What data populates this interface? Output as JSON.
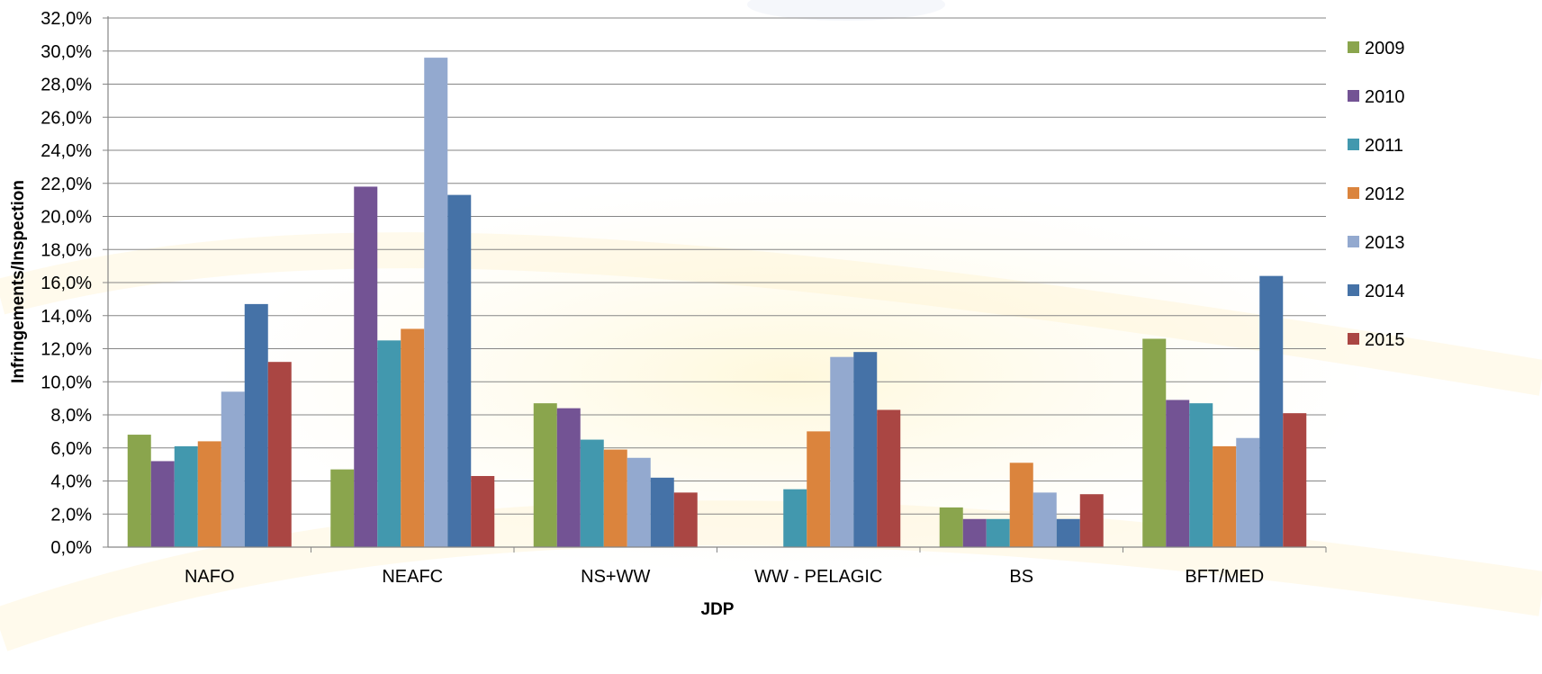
{
  "chart_data": {
    "type": "bar",
    "categories": [
      "NAFO",
      "NEAFC",
      "NS+WW",
      "WW - PELAGIC",
      "BS",
      "BFT/MED"
    ],
    "series": [
      {
        "name": "2009",
        "color": "#8aa54d",
        "values": [
          6.8,
          4.7,
          8.7,
          null,
          2.4,
          12.6
        ]
      },
      {
        "name": "2010",
        "color": "#735394",
        "values": [
          5.2,
          21.8,
          8.4,
          null,
          1.7,
          8.9
        ]
      },
      {
        "name": "2011",
        "color": "#4298ae",
        "values": [
          6.1,
          12.5,
          6.5,
          3.5,
          1.7,
          8.7
        ]
      },
      {
        "name": "2012",
        "color": "#db843d",
        "values": [
          6.4,
          13.2,
          5.9,
          7.0,
          5.1,
          6.1
        ]
      },
      {
        "name": "2013",
        "color": "#93a9cf",
        "values": [
          9.4,
          29.6,
          5.4,
          11.5,
          3.3,
          6.6
        ]
      },
      {
        "name": "2014",
        "color": "#4572a7",
        "values": [
          14.7,
          21.3,
          4.2,
          11.8,
          1.7,
          16.4
        ]
      },
      {
        "name": "2015",
        "color": "#aa4643",
        "values": [
          11.2,
          4.3,
          3.3,
          8.3,
          3.2,
          8.1
        ]
      }
    ],
    "xlabel": "JDP",
    "ylabel": "Infringements/Inspection",
    "ylim": [
      0,
      32
    ],
    "ytick_step": 2,
    "ytick_labels": [
      "0,0%",
      "2,0%",
      "4,0%",
      "6,0%",
      "8,0%",
      "10,0%",
      "12,0%",
      "14,0%",
      "16,0%",
      "18,0%",
      "20,0%",
      "22,0%",
      "24,0%",
      "26,0%",
      "28,0%",
      "30,0%",
      "32,0%"
    ],
    "grid": true,
    "legend": "right"
  }
}
